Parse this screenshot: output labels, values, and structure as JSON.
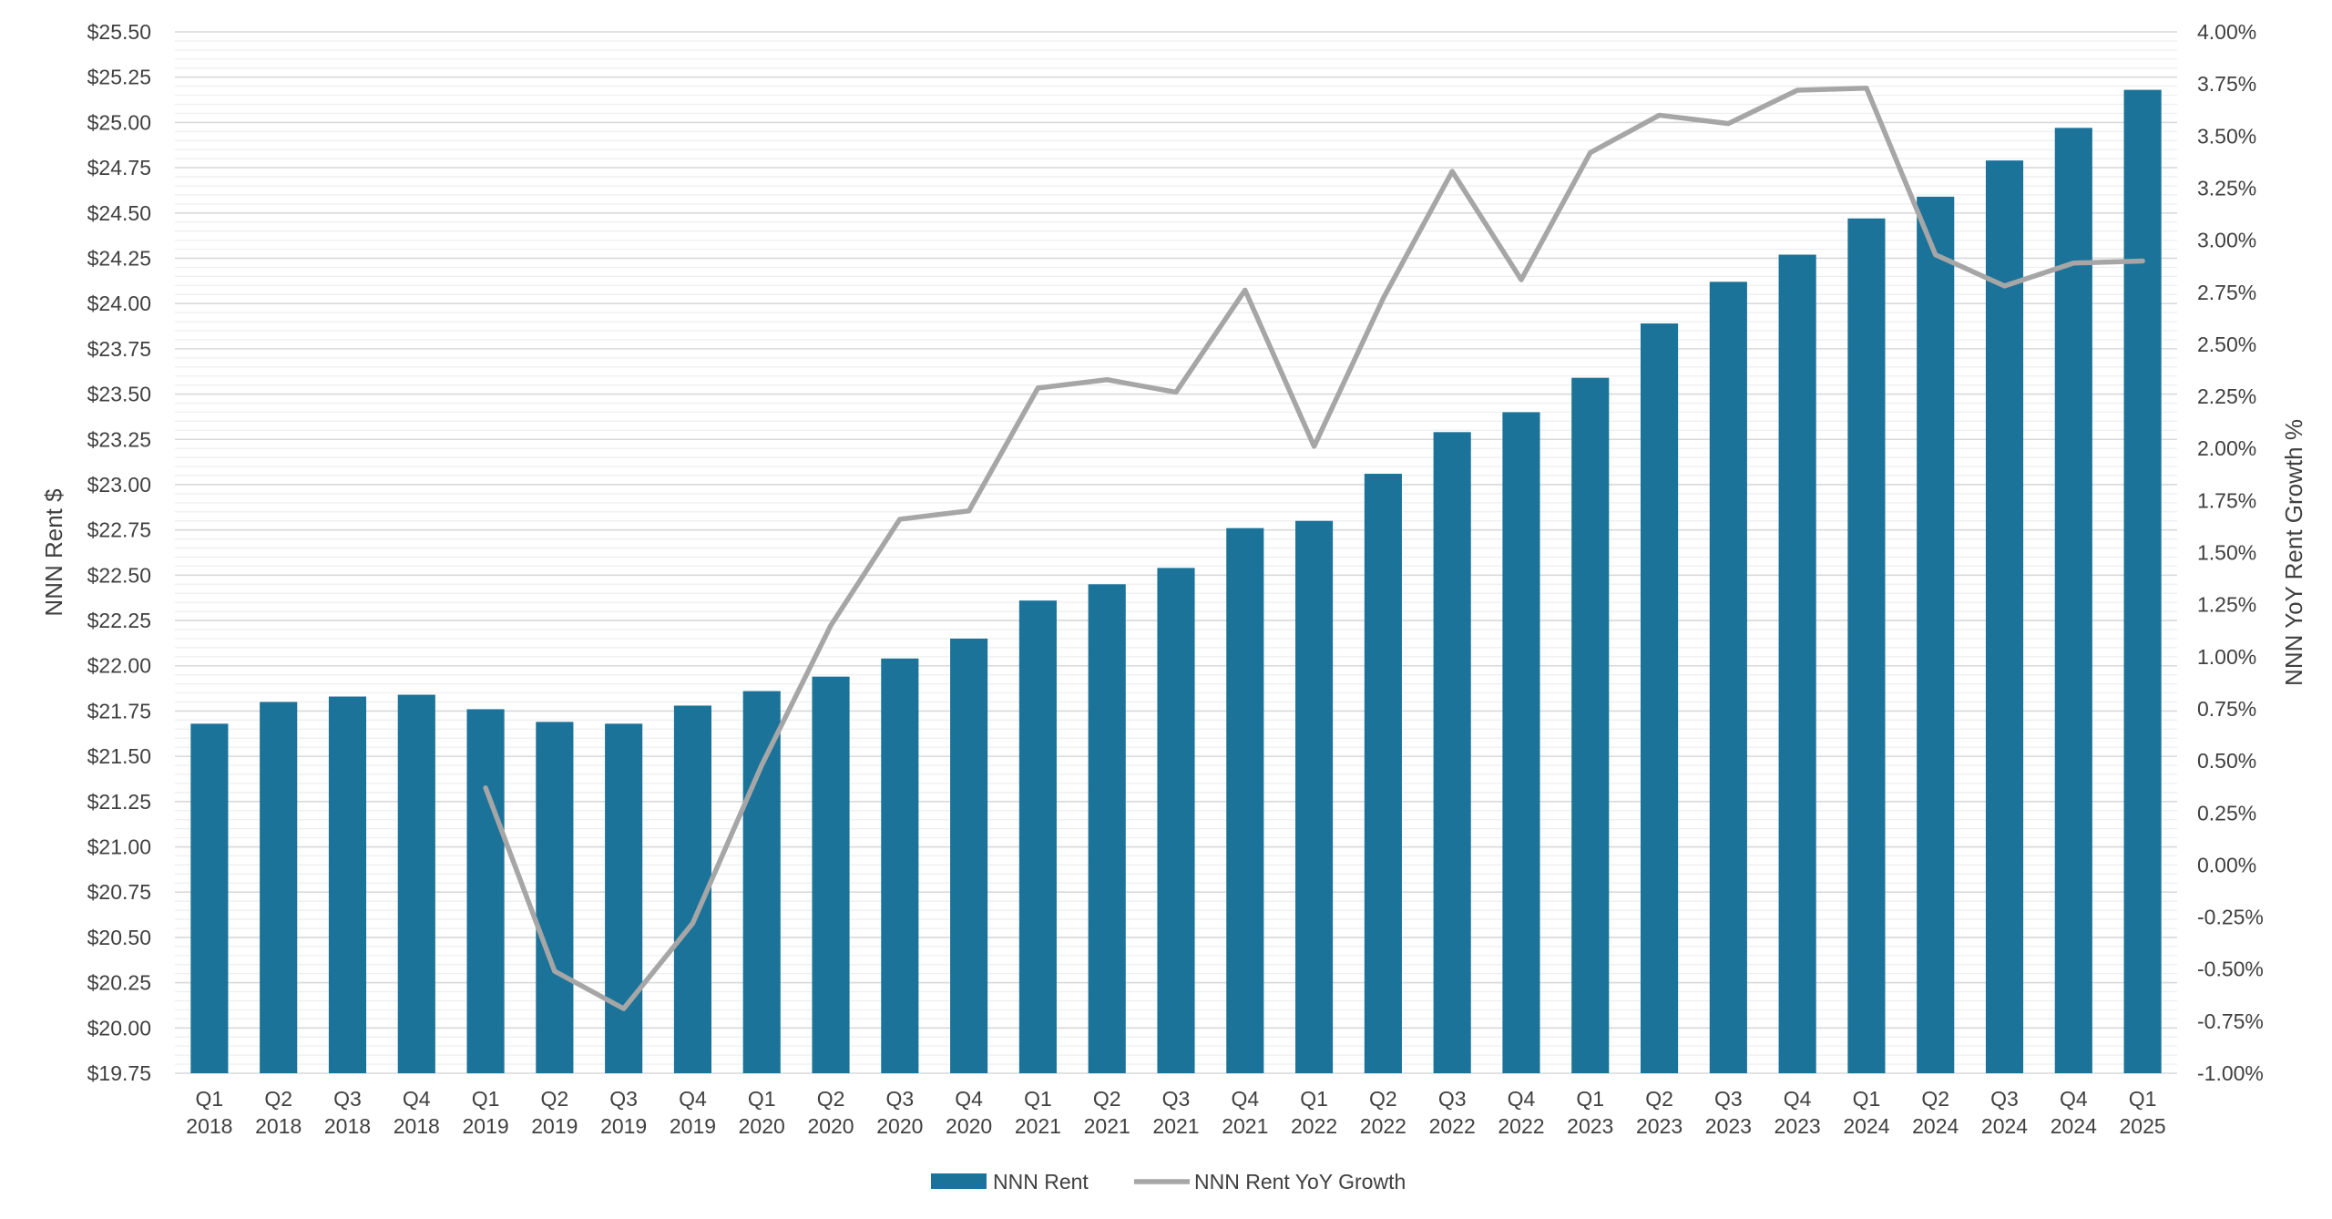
{
  "chart_data": {
    "type": "bar",
    "title": "",
    "categories": [
      "Q1 2018",
      "Q2 2018",
      "Q3 2018",
      "Q4 2018",
      "Q1 2019",
      "Q2 2019",
      "Q3 2019",
      "Q4 2019",
      "Q1 2020",
      "Q2 2020",
      "Q3 2020",
      "Q4 2020",
      "Q1 2021",
      "Q2 2021",
      "Q3 2021",
      "Q4 2021",
      "Q1 2022",
      "Q2 2022",
      "Q3 2022",
      "Q4 2022",
      "Q1 2023",
      "Q2 2023",
      "Q3 2023",
      "Q4 2023",
      "Q1 2024",
      "Q2 2024",
      "Q3 2024",
      "Q4 2024",
      "Q1 2025"
    ],
    "category_labels": [
      {
        "q": "Q1",
        "y": "2018"
      },
      {
        "q": "Q2",
        "y": "2018"
      },
      {
        "q": "Q3",
        "y": "2018"
      },
      {
        "q": "Q4",
        "y": "2018"
      },
      {
        "q": "Q1",
        "y": "2019"
      },
      {
        "q": "Q2",
        "y": "2019"
      },
      {
        "q": "Q3",
        "y": "2019"
      },
      {
        "q": "Q4",
        "y": "2019"
      },
      {
        "q": "Q1",
        "y": "2020"
      },
      {
        "q": "Q2",
        "y": "2020"
      },
      {
        "q": "Q3",
        "y": "2020"
      },
      {
        "q": "Q4",
        "y": "2020"
      },
      {
        "q": "Q1",
        "y": "2021"
      },
      {
        "q": "Q2",
        "y": "2021"
      },
      {
        "q": "Q3",
        "y": "2021"
      },
      {
        "q": "Q4",
        "y": "2021"
      },
      {
        "q": "Q1",
        "y": "2022"
      },
      {
        "q": "Q2",
        "y": "2022"
      },
      {
        "q": "Q3",
        "y": "2022"
      },
      {
        "q": "Q4",
        "y": "2022"
      },
      {
        "q": "Q1",
        "y": "2023"
      },
      {
        "q": "Q2",
        "y": "2023"
      },
      {
        "q": "Q3",
        "y": "2023"
      },
      {
        "q": "Q4",
        "y": "2023"
      },
      {
        "q": "Q1",
        "y": "2024"
      },
      {
        "q": "Q2",
        "y": "2024"
      },
      {
        "q": "Q3",
        "y": "2024"
      },
      {
        "q": "Q4",
        "y": "2024"
      },
      {
        "q": "Q1",
        "y": "2025"
      }
    ],
    "series": [
      {
        "name": "NNN Rent",
        "type": "bar",
        "axis": "left",
        "color": "#1b7399",
        "values": [
          21.68,
          21.8,
          21.83,
          21.84,
          21.76,
          21.69,
          21.68,
          21.78,
          21.86,
          21.94,
          22.04,
          22.15,
          22.36,
          22.45,
          22.54,
          22.76,
          22.8,
          23.06,
          23.29,
          23.4,
          23.59,
          23.89,
          24.12,
          24.27,
          24.47,
          24.59,
          24.79,
          24.97,
          25.18
        ]
      },
      {
        "name": "NNN Rent YoY Growth",
        "type": "line",
        "axis": "right",
        "color": "#a6a6a6",
        "values": [
          null,
          null,
          null,
          null,
          0.37,
          -0.51,
          -0.69,
          -0.28,
          0.48,
          1.15,
          1.66,
          1.7,
          2.29,
          2.33,
          2.27,
          2.76,
          2.01,
          2.72,
          3.33,
          2.81,
          3.42,
          3.6,
          3.56,
          3.72,
          3.73,
          2.93,
          2.78,
          2.89,
          2.9
        ]
      }
    ],
    "ylabel": "NNN Rent $",
    "y2label": "NNN YoY Rent Growth %",
    "ylim": [
      19.75,
      25.5
    ],
    "y2lim": [
      -1.0,
      4.0
    ],
    "yticks": [
      "$19.75",
      "$20.00",
      "$20.25",
      "$20.50",
      "$20.75",
      "$21.00",
      "$21.25",
      "$21.50",
      "$21.75",
      "$22.00",
      "$22.25",
      "$22.50",
      "$22.75",
      "$23.00",
      "$23.25",
      "$23.50",
      "$23.75",
      "$24.00",
      "$24.25",
      "$24.50",
      "$24.75",
      "$25.00",
      "$25.25",
      "$25.50"
    ],
    "y2ticks": [
      "-1.00%",
      "-0.75%",
      "-0.50%",
      "-0.25%",
      "0.00%",
      "0.25%",
      "0.50%",
      "0.75%",
      "1.00%",
      "1.25%",
      "1.50%",
      "1.75%",
      "2.00%",
      "2.25%",
      "2.50%",
      "2.75%",
      "3.00%",
      "3.25%",
      "3.50%",
      "3.75%",
      "4.00%"
    ],
    "grid": true,
    "legend_position": "bottom",
    "colors": {
      "bar": "#1b7399",
      "line": "#a6a6a6",
      "grid_major": "#d9d9d9",
      "grid_minor": "#eeeeee",
      "text": "#404040"
    }
  }
}
